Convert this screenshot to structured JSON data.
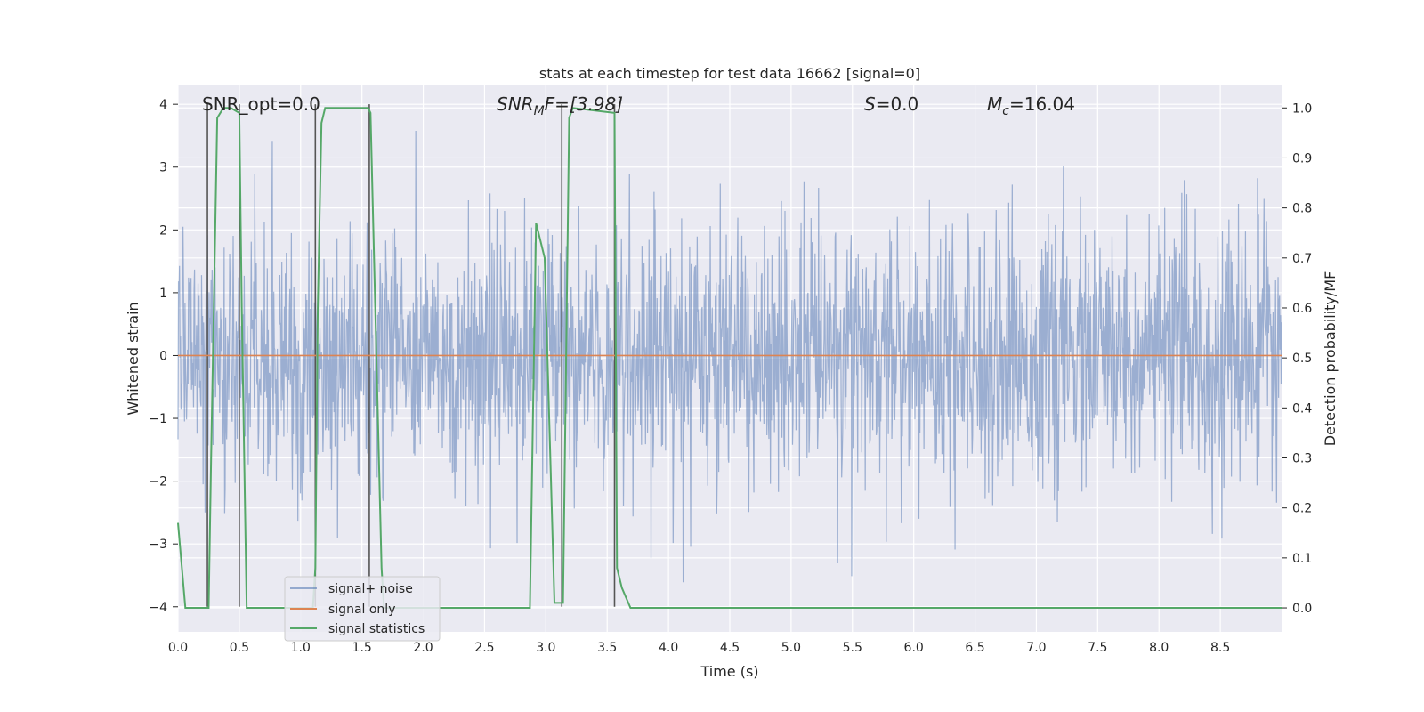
{
  "chart_data": {
    "type": "line",
    "title": "stats at each timestep for test data 16662 [signal=0]",
    "xlabel": "Time (s)",
    "ylabel": "Whitened strain",
    "y2label": "Detection probability/MF",
    "xlim": [
      0.0,
      9.0
    ],
    "ylim": [
      -4.4,
      4.3
    ],
    "y2lim": [
      -0.048,
      1.045
    ],
    "xticks": [
      0.0,
      0.5,
      1.0,
      1.5,
      2.0,
      2.5,
      3.0,
      3.5,
      4.0,
      4.5,
      5.0,
      5.5,
      6.0,
      6.5,
      7.0,
      7.5,
      8.0,
      8.5
    ],
    "xtick_labels": [
      "0.0",
      "0.5",
      "1.0",
      "1.5",
      "2.0",
      "2.5",
      "3.0",
      "3.5",
      "4.0",
      "4.5",
      "5.0",
      "5.5",
      "6.0",
      "6.5",
      "7.0",
      "7.5",
      "8.0",
      "8.5"
    ],
    "yticks": [
      4,
      3,
      2,
      1,
      0,
      -1,
      -2,
      -3,
      -4
    ],
    "ytick_labels": [
      "4",
      "3",
      "2",
      "1",
      "0",
      "−1",
      "−2",
      "−3",
      "−4"
    ],
    "y2ticks": [
      1.0,
      0.9,
      0.8,
      0.7,
      0.6,
      0.5,
      0.4,
      0.3,
      0.2,
      0.1,
      0.0
    ],
    "y2tick_labels": [
      "1.0",
      "0.9",
      "0.8",
      "0.7",
      "0.6",
      "0.5",
      "0.4",
      "0.3",
      "0.2",
      "0.1",
      "0.0"
    ],
    "grid": true,
    "legend_position": "lower-left",
    "series": [
      {
        "name": "signal+ noise",
        "color": "#4c72b0",
        "axis": "left",
        "description": "whitened strain noise, approx 1-sigma band",
        "amplitude_std": 1.0
      },
      {
        "name": "signal only",
        "color": "#dd8452",
        "axis": "left",
        "x": [
          0.0,
          9.0
        ],
        "y": [
          0.0,
          0.0
        ]
      },
      {
        "name": "signal statistics",
        "color": "#55a868",
        "axis": "right",
        "x": [
          0.0,
          0.06,
          0.25,
          0.27,
          0.32,
          0.37,
          0.43,
          0.5,
          0.52,
          0.56,
          1.1,
          1.12,
          1.14,
          1.17,
          1.2,
          1.55,
          1.57,
          1.66,
          1.68,
          2.87,
          2.92,
          2.99,
          3.07,
          3.14,
          3.19,
          3.22,
          3.56,
          3.58,
          3.62,
          3.69,
          9.0
        ],
        "y": [
          0.17,
          0.0,
          0.0,
          0.3,
          0.98,
          1.0,
          1.0,
          0.99,
          0.6,
          0.0,
          0.0,
          0.08,
          0.6,
          0.97,
          1.0,
          1.0,
          0.99,
          0.08,
          0.0,
          0.0,
          0.77,
          0.7,
          0.01,
          0.01,
          0.98,
          1.0,
          0.99,
          0.08,
          0.04,
          0.0,
          0.0
        ]
      }
    ],
    "event_markers": [
      {
        "label": "SNR_opt=0.0"
      },
      {
        "label": "SNR_MF=[3.98]"
      },
      {
        "label": "S=0.0"
      },
      {
        "label": "M_c=16.04"
      }
    ],
    "vertical_lines_x": [
      0.24,
      0.5,
      1.12,
      1.56,
      3.13,
      3.56
    ],
    "vertical_lines_yrange": [
      -4.0,
      4.0
    ]
  },
  "annotations": {
    "snr_opt": "SNR_opt=0.0",
    "snr_mf_base": "SNR",
    "snr_mf_sub": "M",
    "snr_mf_rest": "F=[3.98]",
    "s_var": "S",
    "s_rest": "=0.0",
    "mc_var": "M",
    "mc_sub": "c",
    "mc_rest": "=16.04"
  },
  "legend": {
    "items": [
      {
        "label": "signal+ noise",
        "color": "#4c72b0"
      },
      {
        "label": "signal only",
        "color": "#dd8452"
      },
      {
        "label": "signal statistics",
        "color": "#55a868"
      }
    ]
  }
}
